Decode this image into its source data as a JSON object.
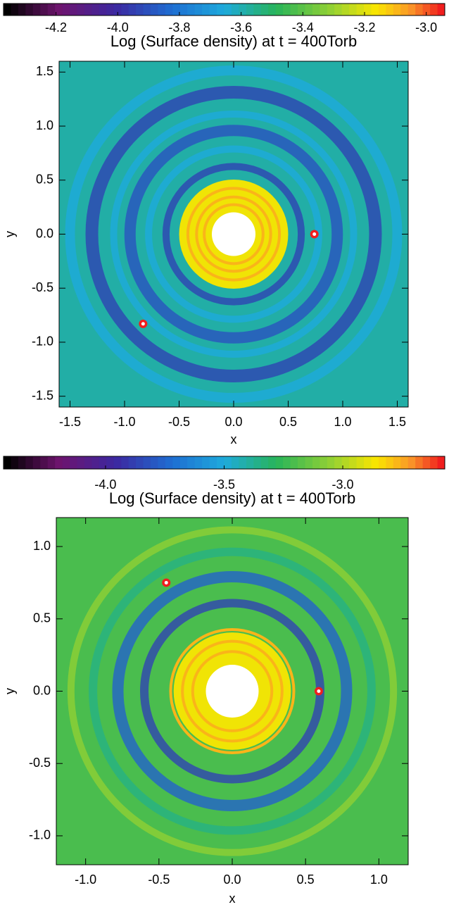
{
  "chart_data": [
    {
      "type": "heatmap",
      "title": "Log (Surface density) at t = 400Torb",
      "xlabel": "x",
      "ylabel": "y",
      "xlim": [
        -1.6,
        1.6
      ],
      "ylim": [
        -1.6,
        1.6
      ],
      "xticks": [
        -1.5,
        {
          "value": -1.0,
          "label": "-1.0"
        },
        -0.5,
        {
          "value": 0.0,
          "label": "0.0"
        },
        0.5,
        {
          "value": 1.0,
          "label": "1.0"
        },
        1.5
      ],
      "yticks": [
        -1.5,
        {
          "value": -1.0,
          "label": "-1.0"
        },
        -0.5,
        {
          "value": 0.0,
          "label": "0.0"
        },
        0.5,
        {
          "value": 1.0,
          "label": "1.0"
        },
        1.5
      ],
      "colorbar_lim": [
        -4.37,
        -2.94
      ],
      "colorbar_ticks": [
        -4.2,
        {
          "value": -4.0,
          "label": "-4.0"
        },
        -3.8,
        -3.6,
        -3.4,
        -3.2,
        {
          "value": -3.0,
          "label": "-3.0"
        }
      ]
    },
    {
      "type": "heatmap",
      "title": "Log (Surface density) at t = 400Torb",
      "xlabel": "x",
      "ylabel": "y",
      "xlim": [
        -1.2,
        1.2
      ],
      "ylim": [
        -1.2,
        1.2
      ],
      "xticks": [
        {
          "value": -1.0,
          "label": "-1.0"
        },
        -0.5,
        {
          "value": 0.0,
          "label": "0.0"
        },
        0.5,
        {
          "value": 1.0,
          "label": "1.0"
        }
      ],
      "yticks": [
        {
          "value": -1.0,
          "label": "-1.0"
        },
        -0.5,
        {
          "value": 0.0,
          "label": "0.0"
        },
        0.5,
        {
          "value": 1.0,
          "label": "1.0"
        }
      ],
      "colorbar_lim": [
        -4.43,
        -2.57
      ],
      "colorbar_ticks": [
        {
          "value": -4.0,
          "label": "-4.0"
        },
        -3.5,
        {
          "value": -3.0,
          "label": "-3.0"
        }
      ]
    }
  ]
}
